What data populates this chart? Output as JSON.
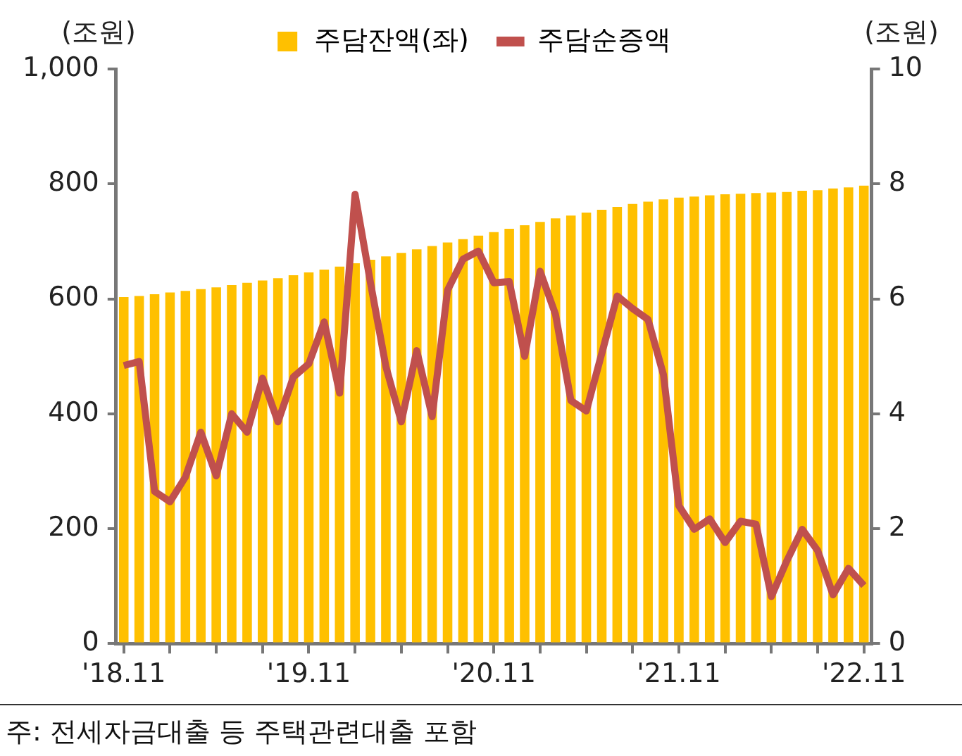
{
  "chart_data": {
    "type": "bar",
    "ylabel": "(조원)",
    "y2label": "(조원)",
    "categories": [
      "'18.11",
      null,
      null,
      null,
      null,
      null,
      null,
      null,
      null,
      null,
      null,
      null,
      "'19.11",
      null,
      null,
      null,
      null,
      null,
      null,
      null,
      null,
      null,
      null,
      null,
      "'20.11",
      null,
      null,
      null,
      null,
      null,
      null,
      null,
      null,
      null,
      null,
      null,
      "'21.11",
      null,
      null,
      null,
      null,
      null,
      null,
      null,
      null,
      null,
      null,
      null,
      "'22.11"
    ],
    "series": [
      {
        "name": "주담잔액(좌)",
        "color": "#ffc000",
        "values": [
          603,
          605,
          608,
          611,
          614,
          617,
          620,
          624,
          628,
          632,
          636,
          641,
          646,
          651,
          656,
          662,
          668,
          674,
          680,
          686,
          692,
          698,
          704,
          710,
          716,
          722,
          728,
          734,
          740,
          745,
          750,
          755,
          760,
          765,
          769,
          773,
          776,
          778,
          780,
          782,
          783,
          784,
          785,
          786,
          788,
          789,
          792,
          794,
          797
        ]
      },
      {
        "name": "주담순증액",
        "type": "line",
        "axis": "y2",
        "color": "#c0504d",
        "values": [
          4.84,
          4.91,
          2.65,
          2.47,
          2.9,
          3.68,
          2.92,
          4.0,
          3.68,
          4.62,
          3.86,
          4.64,
          4.87,
          5.6,
          4.36,
          7.82,
          6.28,
          4.82,
          3.86,
          5.1,
          3.95,
          6.15,
          6.69,
          6.83,
          6.28,
          6.3,
          5.0,
          6.48,
          5.73,
          4.23,
          4.05,
          5.05,
          6.05,
          5.83,
          5.64,
          4.68,
          2.4,
          1.99,
          2.17,
          1.76,
          2.13,
          2.08,
          0.82,
          1.44,
          1.99,
          1.62,
          0.85,
          1.31,
          1.01
        ]
      }
    ],
    "ylim": [
      0,
      1000
    ],
    "yticks": [
      0,
      {
        "value": 200,
        "label": "200"
      },
      400,
      600,
      800,
      {
        "value": 1000,
        "label": "1,000"
      }
    ],
    "y2lim": [
      0,
      10
    ],
    "y2ticks": [
      0,
      2,
      4,
      6,
      8,
      10
    ],
    "grid": false,
    "legend": "top",
    "marker": "none",
    "line_style": "solid",
    "annotations": [
      "주: 전세자금대출 등 주택관련대출 포함"
    ]
  }
}
